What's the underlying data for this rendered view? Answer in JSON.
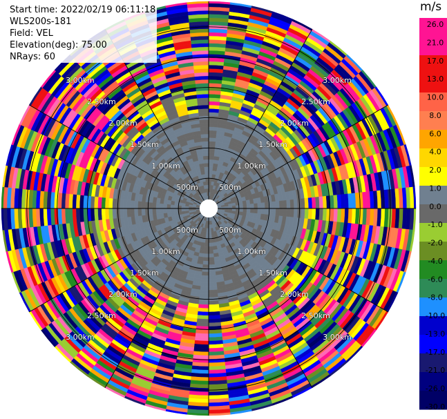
{
  "header": {
    "start_time": "Start time: 2022/02/19 06:11:18",
    "instrument": "WLS200s-181",
    "field": "Field: VEL",
    "elevation": "Elevation(deg): 75.00",
    "nrays": "NRays: 60"
  },
  "chart_data": {
    "type": "heatmap",
    "subtype": "polar-ppi",
    "field": "VEL",
    "elevation_deg": 75.0,
    "nrays": 60,
    "unit": "m/s",
    "range_rings_m": [
      500,
      1000,
      1500,
      2000,
      2500,
      3000
    ],
    "ring_labels": [
      "500m",
      "1.00km",
      "1.50km",
      "2.00km",
      "2.50km",
      "3.00km"
    ],
    "max_range_m": 3420,
    "colorbar": {
      "title": "m/s",
      "ticks": [
        "26.0",
        "21.0",
        "17.0",
        "13.0",
        "10.0",
        "8.0",
        "6.0",
        "4.0",
        "2.0",
        "1.0",
        "0.0",
        "-1.0",
        "-2.0",
        "-4.0",
        "-6.0",
        "-8.0",
        "-10.0",
        "-13.0",
        "-17.0",
        "-21.0",
        "-26.0",
        "-30.0"
      ],
      "bins": [
        {
          "color": "#ff1493"
        },
        {
          "color": "#ff1493"
        },
        {
          "color": "#ee1111"
        },
        {
          "color": "#ee1111"
        },
        {
          "color": "#ff6347"
        },
        {
          "color": "#ff7f50"
        },
        {
          "color": "#ffa500"
        },
        {
          "color": "#ffd700"
        },
        {
          "color": "#ffff00"
        },
        {
          "color": "#708090"
        },
        {
          "color": "#696969"
        },
        {
          "color": "#9acd32"
        },
        {
          "color": "#6b8e23"
        },
        {
          "color": "#228b22"
        },
        {
          "color": "#2e8b57"
        },
        {
          "color": "#1e90ff"
        },
        {
          "color": "#0000cd"
        },
        {
          "color": "#0000ff"
        },
        {
          "color": "#191970"
        },
        {
          "color": "#000080"
        },
        {
          "color": "#000066"
        }
      ]
    },
    "velocity_bands": [
      {
        "from_m": 0,
        "to_m": 150,
        "value": "missing"
      },
      {
        "from_m": 150,
        "to_m": 1550,
        "value": "0.0 to 1.0 m/s (near-zero, gray)"
      },
      {
        "from_m": 1550,
        "to_m": 1900,
        "value": "mixed 1.0 to 8.0 m/s"
      },
      {
        "from_m": 1900,
        "to_m": 3420,
        "value": "noise, full range -30 to 26 m/s"
      }
    ]
  }
}
